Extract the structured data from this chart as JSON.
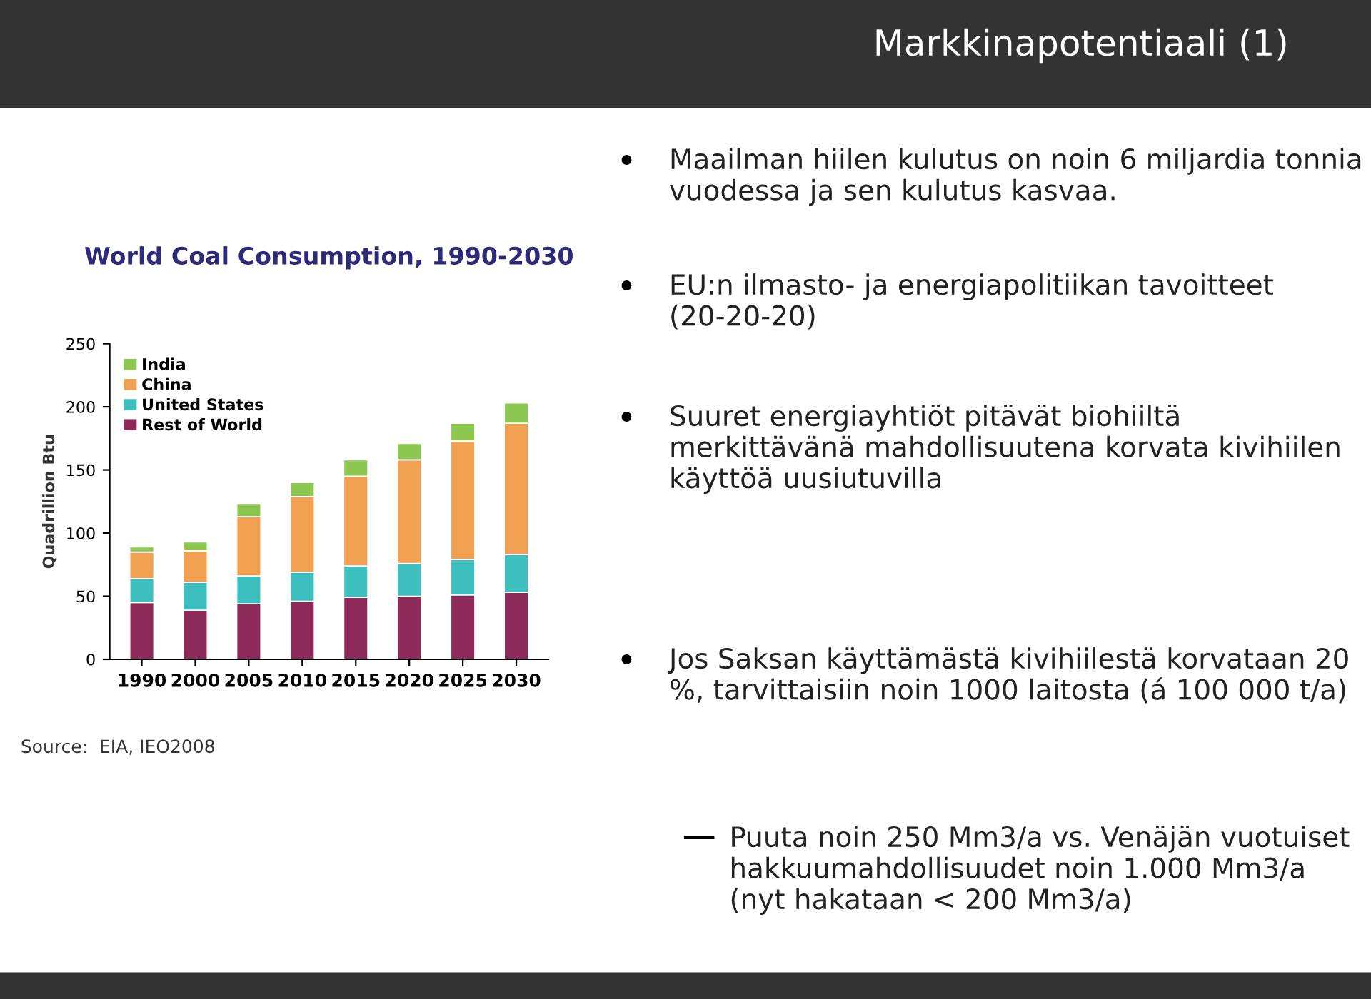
{
  "chart_data": {
    "type": "bar",
    "stacked": true,
    "title": "World Coal Consumption, 1990-2030",
    "ylabel": "Quadrillion Btu",
    "categories": [
      "1990",
      "2000",
      "2005",
      "2010",
      "2015",
      "2020",
      "2025",
      "2030"
    ],
    "series": [
      {
        "name": "Rest of World",
        "color": "#8e2a5a",
        "values": [
          45,
          39,
          44,
          46,
          49,
          50,
          51,
          53
        ]
      },
      {
        "name": "United States",
        "color": "#3dbfbf",
        "values": [
          19,
          22,
          22,
          23,
          25,
          26,
          28,
          30
        ]
      },
      {
        "name": "China",
        "color": "#f0a050",
        "values": [
          21,
          25,
          47,
          60,
          71,
          82,
          94,
          104
        ]
      },
      {
        "name": "India",
        "color": "#8cc850",
        "values": [
          4,
          7,
          10,
          11,
          13,
          13,
          14,
          16
        ]
      }
    ],
    "ylim": [
      0,
      250
    ],
    "yticks": [
      0,
      50,
      100,
      150,
      200,
      250
    ],
    "legend": "top left",
    "grid": false,
    "annotations": [
      "Markkinapotentiaali (1)",
      "Maailman hiilen kulutus on noin 6 miljardia tonnia vuodessa ja sen kulutus kasvaa.",
      "EU:n ilmasto- ja energiapolitiikan tavoitteet (20-20-20)",
      "Suuret energiayhtiöt pitävät biohiiltä merkittävänä mahdollisuutena korvata kivihiilen käyttöä uusiutuvilla",
      "Jos Saksan käyttämästä kivihiilestä korvataan 20 %, tarvittaisiin noin 1000 laitosta (á 100 000 t/a)",
      "Puuta noin 250 Mm3/a vs. Venäjän vuotuiset hakkuumahdollisuudet noin 1.000 Mm3/a (nyt hakataan < 200 Mm3/a)",
      "Source:  EIA, IEO2008"
    ]
  }
}
